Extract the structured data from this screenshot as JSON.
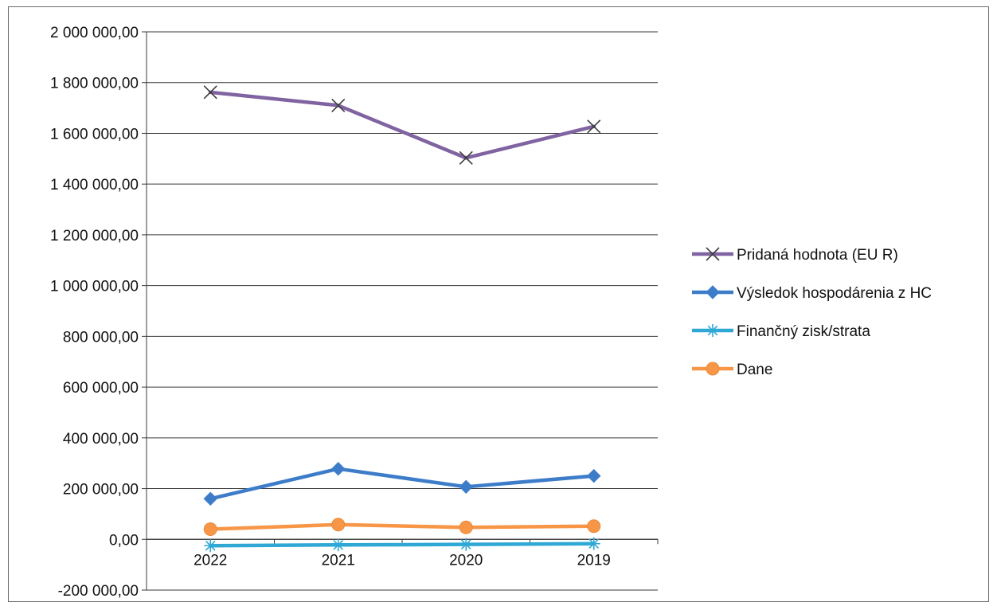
{
  "chart_data": {
    "type": "line",
    "title": "",
    "xlabel": "",
    "ylabel": "",
    "categories": [
      "2022",
      "2021",
      "2020",
      "2019"
    ],
    "ylim": [
      -200000,
      2000000
    ],
    "ytick_step": 200000,
    "ytick_labels": [
      "-200 000,00",
      "0,00",
      "200 000,00",
      "400 000,00",
      "600 000,00",
      "800 000,00",
      "1 000 000,00",
      "1 200 000,00",
      "1 400 000,00",
      "1 600 000,00",
      "1 800 000,00",
      "2 000 000,00"
    ],
    "grid": true,
    "legend_position": "right",
    "series": [
      {
        "name": "Pridaná hodnota (EU R)",
        "color": "#8064a2",
        "marker": "x",
        "values": [
          1762000,
          1710000,
          1503000,
          1627000
        ]
      },
      {
        "name": "Výsledok hospodárenia z HC",
        "color": "#3d7cc9",
        "marker": "diamond",
        "values": [
          160000,
          278000,
          207000,
          250000
        ]
      },
      {
        "name": "Finančný zisk/strata",
        "color": "#2fa8d5",
        "marker": "asterisk",
        "values": [
          -25000,
          -22000,
          -20000,
          -17000
        ]
      },
      {
        "name": "Dane",
        "color": "#f79646",
        "marker": "circle",
        "values": [
          40000,
          58000,
          47000,
          52000
        ]
      }
    ]
  }
}
